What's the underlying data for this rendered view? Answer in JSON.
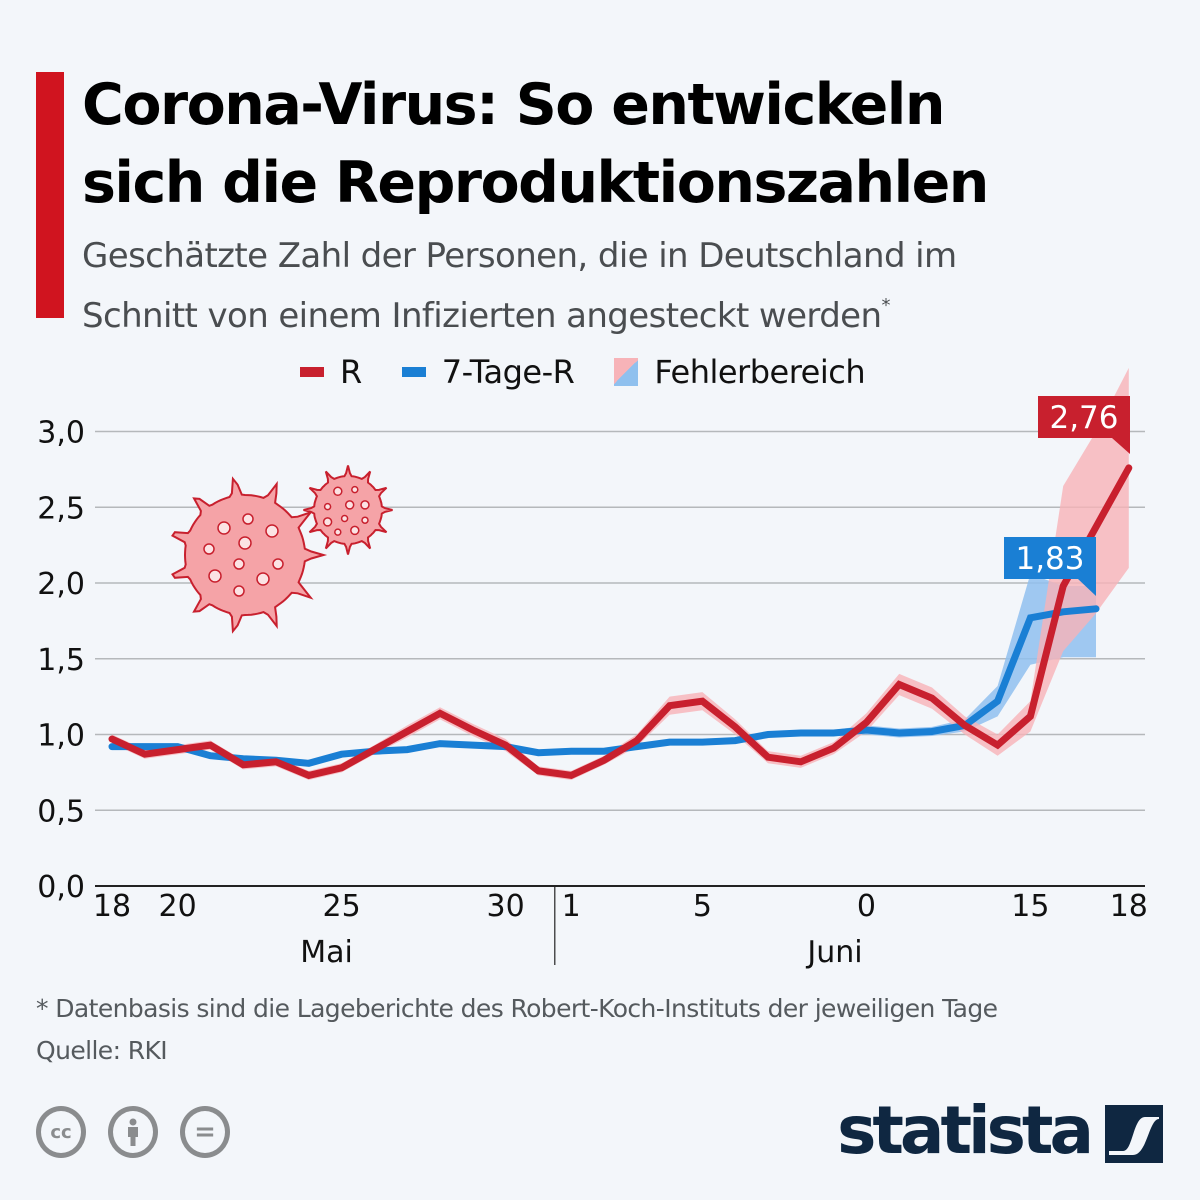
{
  "header": {
    "title_line1": "Corona-Virus: So entwickeln",
    "title_line2": "sich die Reproduktionszahlen",
    "subtitle_line1": "Geschätzte Zahl der Personen, die in Deutschland im",
    "subtitle_line2": "Schnitt von einem Infizierten angesteckt werden",
    "subtitle_footnote_mark": "*"
  },
  "legend": [
    {
      "label": "R",
      "color": "#c8202e",
      "icon": "line-swatch"
    },
    {
      "label": "7-Tage-R",
      "color": "#1a7fd4",
      "icon": "line-swatch"
    },
    {
      "label": "Fehlerbereich",
      "color_a": "#f7b3b8",
      "color_b": "#8fc0ee",
      "icon": "area-swatch"
    }
  ],
  "chart_data": {
    "type": "line",
    "title": "Corona-Virus: So entwickeln sich die Reproduktionszahlen",
    "xlabel": "",
    "ylabel": "",
    "ylim": [
      0,
      3.0
    ],
    "yticks": [
      "0,0",
      "0,5",
      "1,0",
      "1,5",
      "2,0",
      "2,5",
      "3,0"
    ],
    "ytick_values": [
      0,
      0.5,
      1.0,
      1.5,
      2.0,
      2.5,
      3.0
    ],
    "grid": true,
    "legend_position": "top-center",
    "x": [
      "18.05",
      "19.05",
      "20.05",
      "21.05",
      "22.05",
      "23.05",
      "24.05",
      "25.05",
      "26.05",
      "27.05",
      "28.05",
      "29.05",
      "30.05",
      "31.05",
      "01.06",
      "02.06",
      "03.06",
      "04.06",
      "05.06",
      "06.06",
      "07.06",
      "08.06",
      "09.06",
      "10.06",
      "11.06",
      "12.06",
      "13.06",
      "14.06",
      "15.06",
      "16.06",
      "17.06",
      "18.06"
    ],
    "xticks": [
      {
        "label": "18",
        "index": 0
      },
      {
        "label": "20",
        "index": 2
      },
      {
        "label": "25",
        "index": 7
      },
      {
        "label": "30",
        "index": 12
      },
      {
        "label": "1",
        "index": 14
      },
      {
        "label": "5",
        "index": 18
      },
      {
        "label": "0",
        "index": 23
      },
      {
        "label": "15",
        "index": 28
      },
      {
        "label": "18",
        "index": 31
      }
    ],
    "month_labels": [
      {
        "label": "Mai",
        "center_index": 7
      },
      {
        "label": "Juni",
        "center_index": 22.5
      }
    ],
    "month_divider_index": 13.5,
    "series": [
      {
        "name": "R",
        "color": "#c8202e",
        "values": [
          0.97,
          0.87,
          0.9,
          0.93,
          0.8,
          0.82,
          0.73,
          0.78,
          0.9,
          1.02,
          1.14,
          1.03,
          0.93,
          0.76,
          0.73,
          0.83,
          0.96,
          1.19,
          1.22,
          1.05,
          0.85,
          0.82,
          0.91,
          1.08,
          1.33,
          1.24,
          1.06,
          0.93,
          1.12,
          1.98,
          2.37,
          2.76
        ],
        "error_upper": [
          1.0,
          0.9,
          0.93,
          0.96,
          0.83,
          0.85,
          0.76,
          0.81,
          0.93,
          1.06,
          1.18,
          1.07,
          0.97,
          0.79,
          0.76,
          0.86,
          1.0,
          1.25,
          1.28,
          1.1,
          0.89,
          0.86,
          0.95,
          1.14,
          1.4,
          1.31,
          1.12,
          1.0,
          1.22,
          2.64,
          3.0,
          3.42
        ],
        "error_lower": [
          0.94,
          0.84,
          0.87,
          0.9,
          0.77,
          0.79,
          0.7,
          0.75,
          0.87,
          0.98,
          1.1,
          0.99,
          0.89,
          0.73,
          0.7,
          0.8,
          0.92,
          1.13,
          1.16,
          1.0,
          0.81,
          0.78,
          0.87,
          1.02,
          1.26,
          1.17,
          1.0,
          0.86,
          1.02,
          1.55,
          1.8,
          2.1
        ],
        "end_label": "2,76"
      },
      {
        "name": "7-Tage-R",
        "color": "#1a7fd4",
        "values": [
          0.92,
          0.92,
          0.92,
          0.86,
          0.84,
          0.83,
          0.81,
          0.87,
          0.89,
          0.9,
          0.94,
          0.93,
          0.92,
          0.88,
          0.89,
          0.89,
          0.92,
          0.95,
          0.95,
          0.96,
          1.0,
          1.01,
          1.01,
          1.03,
          1.01,
          1.02,
          1.06,
          1.22,
          1.77,
          1.81,
          1.83,
          null
        ],
        "error_upper": [
          0.94,
          0.94,
          0.94,
          0.88,
          0.86,
          0.85,
          0.83,
          0.89,
          0.91,
          0.92,
          0.96,
          0.95,
          0.94,
          0.9,
          0.91,
          0.91,
          0.94,
          0.97,
          0.97,
          0.98,
          1.02,
          1.03,
          1.03,
          1.06,
          1.04,
          1.05,
          1.1,
          1.32,
          2.06,
          1.98,
          1.98,
          null
        ],
        "error_lower": [
          0.9,
          0.9,
          0.9,
          0.84,
          0.82,
          0.81,
          0.79,
          0.85,
          0.87,
          0.88,
          0.92,
          0.91,
          0.9,
          0.86,
          0.87,
          0.87,
          0.9,
          0.93,
          0.93,
          0.94,
          0.98,
          0.99,
          0.99,
          1.0,
          0.98,
          0.99,
          1.02,
          1.12,
          1.46,
          1.51,
          1.51,
          null
        ],
        "end_label": "1,83"
      }
    ]
  },
  "footer": {
    "footnote": "* Datenbasis sind die Lageberichte des Robert-Koch-Instituts der jeweiligen Tage",
    "source": "Quelle: RKI",
    "license_icons": [
      "cc-icon",
      "attribution-icon",
      "no-derivatives-icon"
    ],
    "cc_label": "cc",
    "nd_label": "=",
    "brand": "statista"
  }
}
